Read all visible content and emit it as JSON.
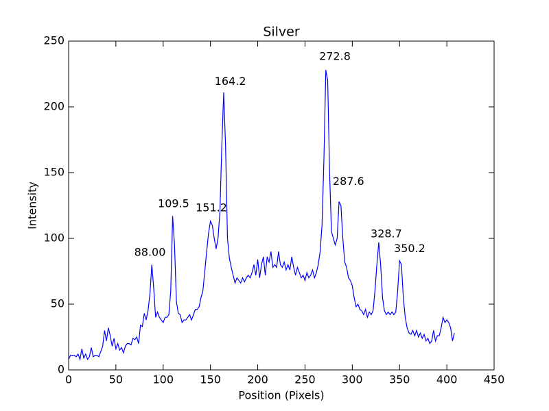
{
  "chart_data": {
    "type": "line",
    "title": "Silver",
    "xlabel": "Position (Pixels)",
    "ylabel": "Intensity",
    "color": "#0000ff",
    "grid": false,
    "xlim": [
      0,
      450
    ],
    "xticks": [
      0,
      50,
      100,
      150,
      200,
      250,
      300,
      350,
      400,
      450
    ],
    "ylim": [
      0,
      250
    ],
    "yticks": [
      0,
      50,
      100,
      150,
      200,
      250
    ],
    "x": [
      0,
      2,
      4,
      6,
      8,
      10,
      12,
      14,
      16,
      18,
      20,
      22,
      24,
      26,
      28,
      30,
      32,
      34,
      36,
      38,
      40,
      42,
      44,
      46,
      48,
      50,
      52,
      54,
      56,
      58,
      60,
      62,
      64,
      66,
      68,
      70,
      72,
      74,
      76,
      78,
      80,
      82,
      84,
      86,
      88,
      90,
      92,
      94,
      96,
      98,
      100,
      102,
      104,
      106,
      108,
      110,
      112,
      114,
      116,
      118,
      120,
      122,
      124,
      126,
      128,
      130,
      132,
      134,
      136,
      138,
      140,
      142,
      144,
      146,
      148,
      150,
      152,
      154,
      156,
      158,
      160,
      162,
      164,
      166,
      168,
      170,
      172,
      174,
      176,
      178,
      180,
      182,
      184,
      186,
      188,
      190,
      192,
      194,
      196,
      198,
      200,
      202,
      204,
      206,
      208,
      210,
      212,
      214,
      216,
      218,
      220,
      222,
      224,
      226,
      228,
      230,
      232,
      234,
      236,
      238,
      240,
      242,
      244,
      246,
      248,
      250,
      252,
      254,
      256,
      258,
      260,
      262,
      264,
      266,
      268,
      270,
      272,
      274,
      276,
      278,
      280,
      282,
      284,
      286,
      288,
      290,
      292,
      294,
      296,
      298,
      300,
      302,
      304,
      306,
      308,
      310,
      312,
      314,
      316,
      318,
      320,
      322,
      324,
      326,
      328,
      330,
      332,
      334,
      336,
      338,
      340,
      342,
      344,
      346,
      348,
      350,
      352,
      354,
      356,
      358,
      360,
      362,
      364,
      366,
      368,
      370,
      372,
      374,
      376,
      378,
      380,
      382,
      384,
      386,
      388,
      390,
      392,
      394,
      396,
      398,
      400,
      402,
      404,
      406,
      408
    ],
    "values": [
      8,
      11,
      11,
      11,
      10,
      12,
      8,
      16,
      9,
      12,
      8,
      10,
      17,
      10,
      11,
      11,
      10,
      14,
      18,
      30,
      22,
      32,
      26,
      18,
      24,
      16,
      20,
      15,
      17,
      13,
      18,
      20,
      20,
      19,
      24,
      23,
      25,
      20,
      34,
      33,
      43,
      38,
      45,
      58,
      80,
      62,
      40,
      44,
      40,
      38,
      36,
      40,
      40,
      42,
      60,
      117,
      95,
      52,
      43,
      42,
      36,
      38,
      38,
      40,
      42,
      38,
      42,
      46,
      46,
      48,
      55,
      60,
      75,
      90,
      104,
      113,
      110,
      100,
      92,
      100,
      120,
      170,
      211,
      170,
      100,
      85,
      78,
      72,
      66,
      70,
      68,
      66,
      70,
      67,
      70,
      72,
      70,
      74,
      80,
      72,
      84,
      70,
      80,
      86,
      72,
      86,
      82,
      90,
      78,
      80,
      78,
      90,
      80,
      78,
      82,
      76,
      80,
      76,
      86,
      78,
      72,
      78,
      74,
      70,
      72,
      68,
      74,
      70,
      72,
      76,
      70,
      74,
      80,
      90,
      110,
      160,
      228,
      220,
      150,
      105,
      100,
      95,
      100,
      128,
      125,
      100,
      82,
      78,
      70,
      68,
      64,
      55,
      48,
      50,
      46,
      45,
      42,
      46,
      40,
      44,
      42,
      45,
      60,
      80,
      97,
      80,
      55,
      45,
      42,
      44,
      42,
      44,
      42,
      44,
      60,
      83,
      80,
      55,
      40,
      32,
      28,
      27,
      30,
      26,
      30,
      25,
      28,
      24,
      27,
      22,
      24,
      20,
      22,
      30,
      22,
      26,
      26,
      32,
      40,
      36,
      38,
      36,
      32,
      22,
      28
    ],
    "annotations": [
      {
        "text": "88.00",
        "x": 86,
        "y": 89
      },
      {
        "text": "109.5",
        "x": 111,
        "y": 126
      },
      {
        "text": "151.2",
        "x": 151,
        "y": 123
      },
      {
        "text": "164.2",
        "x": 171,
        "y": 219
      },
      {
        "text": "272.8",
        "x": 281.6,
        "y": 238
      },
      {
        "text": "287.6",
        "x": 296,
        "y": 143
      },
      {
        "text": "328.7",
        "x": 336,
        "y": 103
      },
      {
        "text": "350.2",
        "x": 360.7,
        "y": 92
      }
    ]
  }
}
